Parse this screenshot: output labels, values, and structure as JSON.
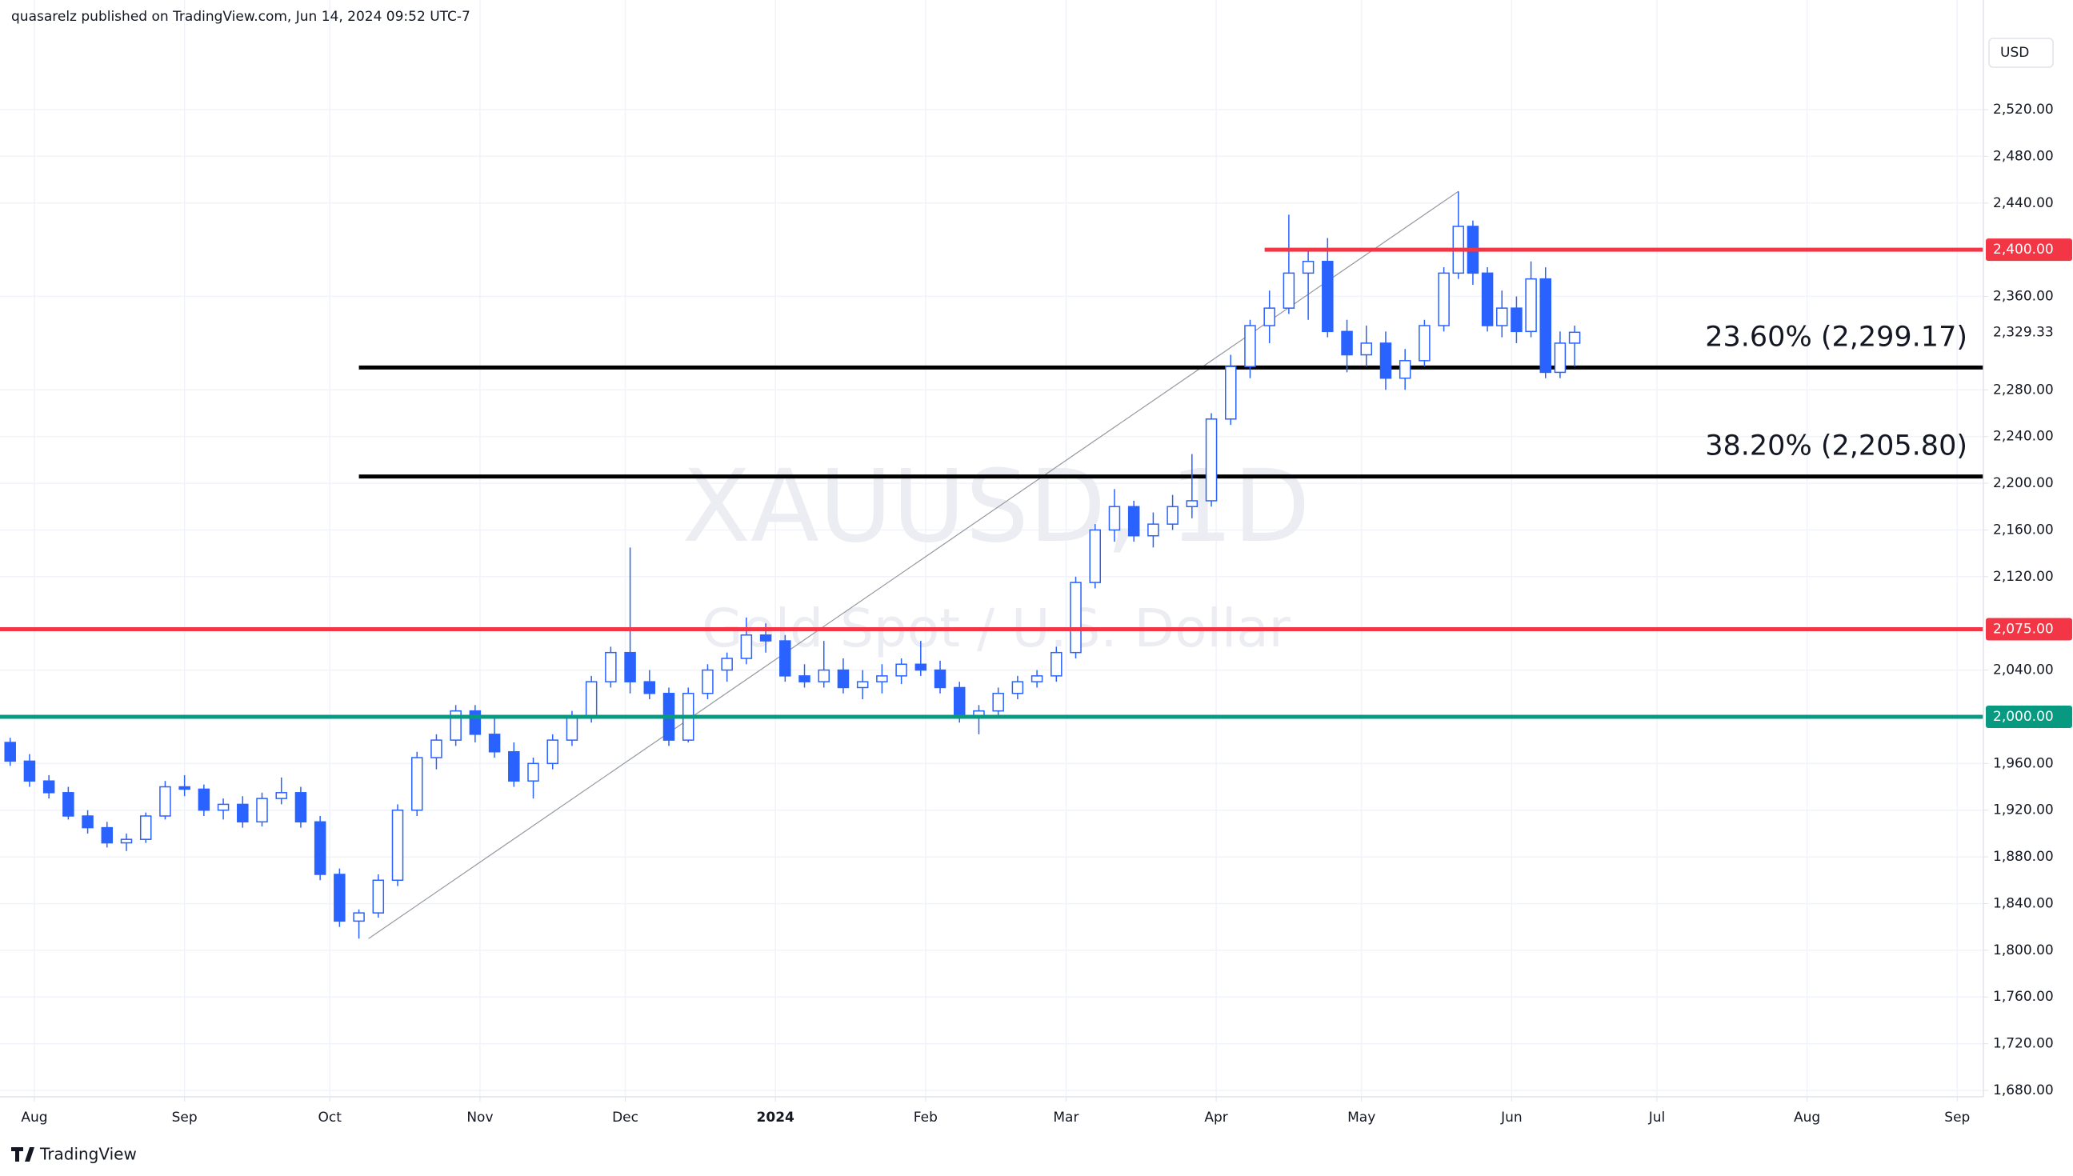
{
  "chart_data": {
    "type": "candlestick",
    "header": "quasarelz published on TradingView.com, Jun 14, 2024 09:52 UTC-7",
    "symbol": "XAUUSD, 1D",
    "subtitle": "Gold Spot / U.S. Dollar",
    "currency": "USD",
    "brand": "TradingView",
    "up_color": "#2962ff",
    "down_color": "#2962ff",
    "grid": true,
    "xlim": [
      -7.1,
      402.4
    ],
    "xticks": [
      {
        "value": 0,
        "label": "Aug"
      },
      {
        "value": 31,
        "label": "Sep"
      },
      {
        "value": 61,
        "label": "Oct"
      },
      {
        "value": 92,
        "label": "Nov"
      },
      {
        "value": 122,
        "label": "Dec"
      },
      {
        "value": 153,
        "label": "2024"
      },
      {
        "value": 184,
        "label": "Feb"
      },
      {
        "value": 213,
        "label": "Mar"
      },
      {
        "value": 244,
        "label": "Apr"
      },
      {
        "value": 274,
        "label": "May"
      },
      {
        "value": 305,
        "label": "Jun"
      },
      {
        "value": 335,
        "label": "Jul"
      },
      {
        "value": 366,
        "label": "Aug"
      },
      {
        "value": 397,
        "label": "Sep"
      }
    ],
    "ylim": [
      1674.5,
      2613.9
    ],
    "yticks": [
      {
        "value": 1680,
        "label": "1,680.00"
      },
      {
        "value": 1720,
        "label": "1,720.00"
      },
      {
        "value": 1760,
        "label": "1,760.00"
      },
      {
        "value": 1800,
        "label": "1,800.00"
      },
      {
        "value": 1840,
        "label": "1,840.00"
      },
      {
        "value": 1880,
        "label": "1,880.00"
      },
      {
        "value": 1920,
        "label": "1,920.00"
      },
      {
        "value": 1960,
        "label": "1,960.00"
      },
      {
        "value": 2040,
        "label": "2,040.00"
      },
      {
        "value": 2120,
        "label": "2,120.00"
      },
      {
        "value": 2160,
        "label": "2,160.00"
      },
      {
        "value": 2200,
        "label": "2,200.00"
      },
      {
        "value": 2240,
        "label": "2,240.00"
      },
      {
        "value": 2280,
        "label": "2,280.00"
      },
      {
        "value": 2360,
        "label": "2,360.00"
      },
      {
        "value": 2440,
        "label": "2,440.00"
      },
      {
        "value": 2480,
        "label": "2,480.00"
      },
      {
        "value": 2520,
        "label": "2,520.00"
      }
    ],
    "x": [
      -5,
      -1,
      3,
      7,
      11,
      15,
      19,
      23,
      27,
      31,
      35,
      39,
      43,
      47,
      51,
      55,
      59,
      63,
      67,
      71,
      75,
      79,
      83,
      87,
      91,
      95,
      99,
      103,
      107,
      111,
      115,
      119,
      123,
      127,
      131,
      135,
      139,
      143,
      147,
      151,
      155,
      159,
      163,
      167,
      171,
      175,
      179,
      183,
      187,
      191,
      195,
      199,
      203,
      207,
      211,
      215,
      219,
      223,
      227,
      231,
      235,
      239,
      243,
      247,
      251,
      255,
      259,
      263,
      267,
      271,
      275,
      279,
      283,
      287,
      291,
      294,
      297,
      300,
      303,
      306,
      309,
      312,
      315,
      318
    ],
    "open": [
      1978,
      1962,
      1945,
      1935,
      1915,
      1905,
      1892,
      1895,
      1915,
      1940,
      1938,
      1920,
      1925,
      1910,
      1930,
      1935,
      1910,
      1865,
      1825,
      1832,
      1860,
      1920,
      1965,
      1980,
      2005,
      1985,
      1970,
      1945,
      1960,
      1980,
      2000,
      2030,
      2055,
      2030,
      2020,
      1980,
      2020,
      2040,
      2050,
      2070,
      2065,
      2035,
      2030,
      2040,
      2025,
      2030,
      2035,
      2045,
      2040,
      2025,
      2000,
      2005,
      2020,
      2030,
      2035,
      2055,
      2115,
      2160,
      2180,
      2155,
      2165,
      2180,
      2185,
      2255,
      2300,
      2335,
      2350,
      2380,
      2390,
      2330,
      2310,
      2320,
      2290,
      2305,
      2335,
      2380,
      2420,
      2380,
      2335,
      2350,
      2330,
      2375,
      2295,
      2320
    ],
    "high": [
      1982,
      1968,
      1950,
      1940,
      1920,
      1910,
      1900,
      1918,
      1945,
      1950,
      1942,
      1930,
      1932,
      1935,
      1948,
      1940,
      1915,
      1870,
      1835,
      1865,
      1925,
      1970,
      1985,
      2010,
      2010,
      2000,
      1978,
      1965,
      1985,
      2005,
      2035,
      2060,
      2145,
      2040,
      2025,
      2025,
      2045,
      2055,
      2085,
      2080,
      2070,
      2045,
      2065,
      2050,
      2040,
      2045,
      2050,
      2065,
      2048,
      2030,
      2010,
      2025,
      2035,
      2040,
      2060,
      2120,
      2165,
      2195,
      2185,
      2175,
      2190,
      2225,
      2260,
      2310,
      2340,
      2365,
      2430,
      2400,
      2410,
      2340,
      2335,
      2330,
      2315,
      2340,
      2385,
      2450,
      2425,
      2385,
      2365,
      2360,
      2390,
      2385,
      2330,
      2335
    ],
    "low": [
      1958,
      1940,
      1930,
      1912,
      1900,
      1888,
      1885,
      1892,
      1912,
      1932,
      1915,
      1912,
      1905,
      1906,
      1925,
      1905,
      1860,
      1820,
      1810,
      1828,
      1855,
      1915,
      1955,
      1975,
      1978,
      1965,
      1940,
      1930,
      1955,
      1975,
      1995,
      2025,
      2020,
      2015,
      1975,
      1978,
      2015,
      2030,
      2045,
      2055,
      2030,
      2025,
      2025,
      2020,
      2015,
      2020,
      2028,
      2035,
      2020,
      1995,
      1985,
      2000,
      2015,
      2025,
      2030,
      2050,
      2110,
      2150,
      2150,
      2145,
      2160,
      2170,
      2180,
      2250,
      2290,
      2320,
      2345,
      2340,
      2325,
      2295,
      2300,
      2280,
      2280,
      2300,
      2330,
      2375,
      2370,
      2330,
      2325,
      2320,
      2325,
      2290,
      2290,
      2300
    ],
    "close": [
      1962,
      1945,
      1935,
      1915,
      1905,
      1892,
      1895,
      1915,
      1940,
      1938,
      1920,
      1925,
      1910,
      1930,
      1935,
      1910,
      1865,
      1825,
      1832,
      1860,
      1920,
      1965,
      1980,
      2005,
      1985,
      1970,
      1945,
      1960,
      1980,
      2000,
      2030,
      2055,
      2030,
      2020,
      1980,
      2020,
      2040,
      2050,
      2070,
      2065,
      2035,
      2030,
      2040,
      2025,
      2030,
      2035,
      2045,
      2040,
      2025,
      2000,
      2005,
      2020,
      2030,
      2035,
      2055,
      2115,
      2160,
      2180,
      2155,
      2165,
      2180,
      2185,
      2255,
      2300,
      2335,
      2350,
      2380,
      2390,
      2330,
      2310,
      2320,
      2290,
      2305,
      2335,
      2380,
      2420,
      2380,
      2335,
      2350,
      2330,
      2375,
      2295,
      2320,
      2329.33
    ],
    "last_price": {
      "value": 2329.33,
      "label": "2,329.33"
    },
    "levels": [
      {
        "value": 2400,
        "label": "2,400.00",
        "color": "#f23645",
        "from": 254
      },
      {
        "value": 2075,
        "label": "2,075.00",
        "color": "#f23645",
        "from": -7.1
      },
      {
        "value": 2000,
        "label": "2,000.00",
        "color": "#089981",
        "from": -7.1
      }
    ],
    "fib_levels": [
      {
        "value": 2299.17,
        "label": "23.60% (2,299.17)",
        "from": 67
      },
      {
        "value": 2205.8,
        "label": "38.20% (2,205.80)",
        "from": 67
      }
    ],
    "trendline": {
      "x": [
        69,
        294
      ],
      "y": [
        1810,
        2450
      ]
    }
  }
}
